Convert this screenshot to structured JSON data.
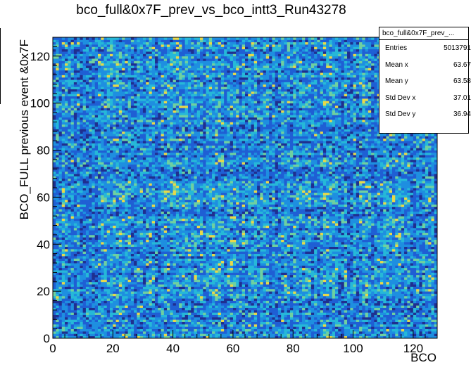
{
  "chart_data": {
    "type": "heatmap",
    "title": "bco_full&0x7F_prev_vs_bco_intt3_Run43278",
    "xlabel": "BCO",
    "ylabel": "BCO_FULL previous event &0x7F",
    "xlim": [
      0,
      128
    ],
    "ylim": [
      0,
      128
    ],
    "x_ticks": [
      "0",
      "20",
      "40",
      "60",
      "80",
      "100",
      "120"
    ],
    "y_ticks": [
      "0",
      "20",
      "40",
      "60",
      "80",
      "100",
      "120"
    ],
    "nbins_x": 128,
    "nbins_y": 128,
    "colormap": [
      "#1f2f8f",
      "#1f5fd4",
      "#1e8fe0",
      "#26b8d8",
      "#6fd0a0",
      "#e8d84a"
    ],
    "stats": {
      "name": "bco_full&0x7F_prev_...",
      "entries_label": "Entries",
      "entries": "5013791",
      "mean_x_label": "Mean x",
      "mean_x": "63.67",
      "mean_y_label": "Mean y",
      "mean_y": "63.58",
      "std_x_label": "Std Dev x",
      "std_x": "37.01",
      "std_y_label": "Std Dev y",
      "std_y": "36.94"
    }
  }
}
